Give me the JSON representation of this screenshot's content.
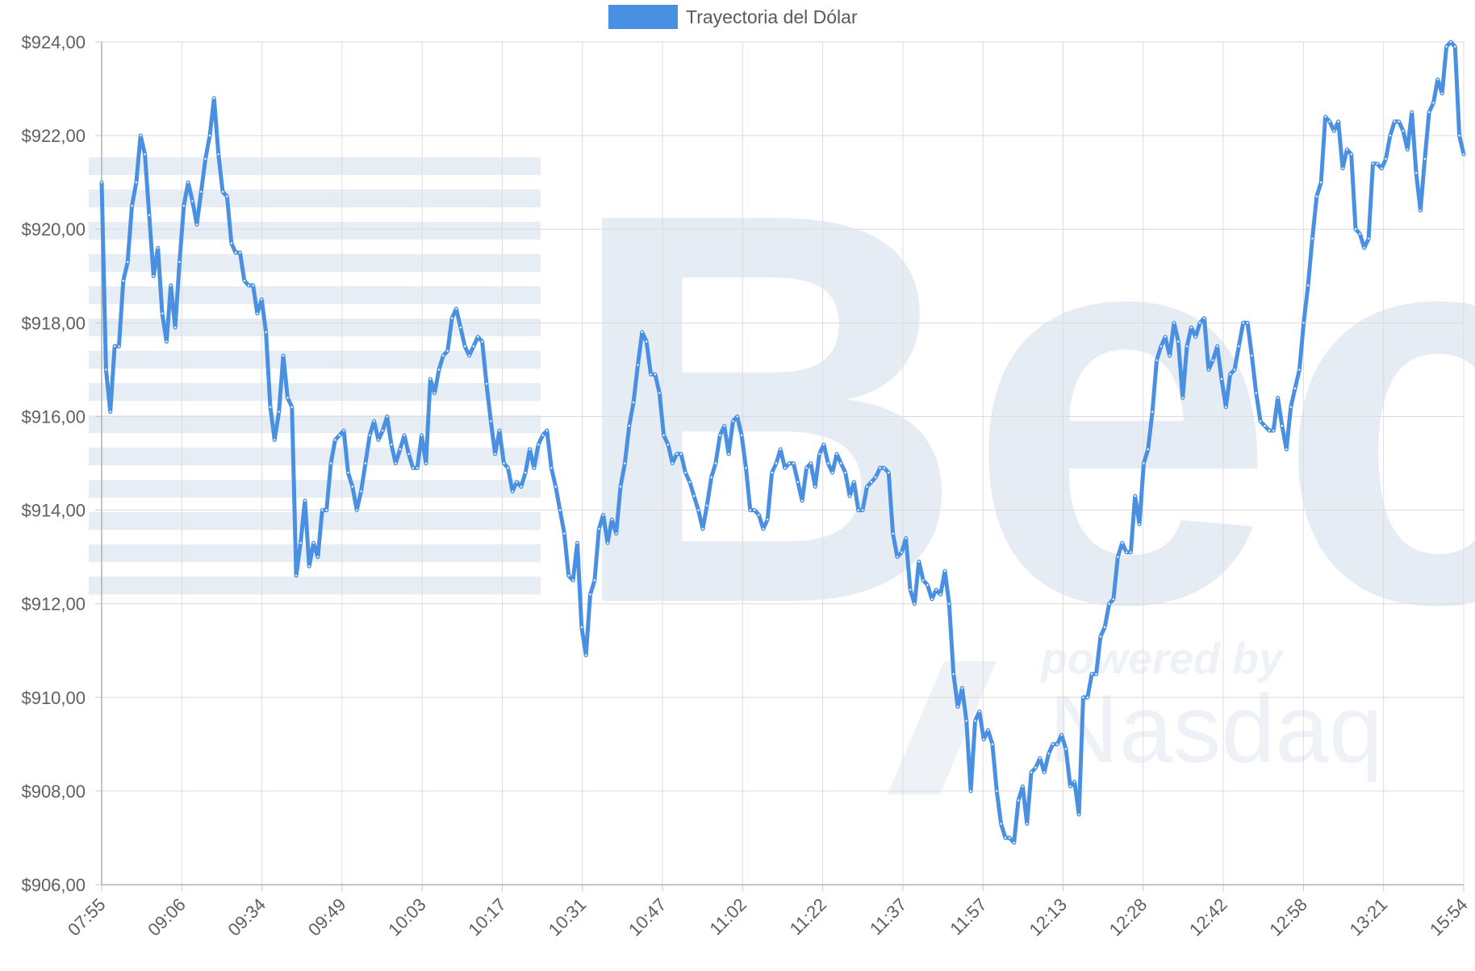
{
  "chart_data": {
    "type": "line",
    "series": [
      {
        "name": "Trayectoria del Dólar",
        "color": "#4a90e2",
        "values": [
          921.0,
          917.0,
          916.1,
          917.5,
          917.5,
          918.9,
          919.3,
          920.5,
          921.0,
          922.0,
          921.6,
          920.3,
          919.0,
          919.6,
          918.2,
          917.6,
          918.8,
          917.9,
          919.3,
          920.5,
          921.0,
          920.6,
          920.1,
          920.8,
          921.5,
          922.0,
          922.8,
          921.6,
          920.8,
          920.7,
          919.7,
          919.5,
          919.5,
          918.9,
          918.8,
          918.8,
          918.2,
          918.5,
          917.8,
          916.2,
          915.5,
          916.1,
          917.3,
          916.4,
          916.2,
          912.6,
          913.3,
          914.2,
          912.8,
          913.3,
          913.0,
          914.0,
          914.0,
          915.0,
          915.5,
          915.6,
          915.7,
          914.8,
          914.5,
          914.0,
          914.4,
          915.0,
          915.6,
          915.9,
          915.5,
          915.7,
          916.0,
          915.4,
          915.0,
          915.3,
          915.6,
          915.2,
          914.9,
          914.9,
          915.6,
          915.0,
          916.8,
          916.5,
          917.0,
          917.3,
          917.4,
          918.1,
          918.3,
          917.9,
          917.5,
          917.3,
          917.5,
          917.7,
          917.6,
          916.7,
          915.9,
          915.2,
          915.7,
          915.0,
          914.9,
          914.4,
          914.6,
          914.5,
          914.8,
          915.3,
          914.9,
          915.4,
          915.6,
          915.7,
          914.9,
          914.5,
          914.0,
          913.5,
          912.6,
          912.5,
          913.3,
          911.5,
          910.9,
          912.2,
          912.5,
          913.6,
          913.9,
          913.3,
          913.8,
          913.5,
          914.5,
          915.0,
          915.8,
          916.3,
          917.1,
          917.8,
          917.6,
          916.9,
          916.9,
          916.5,
          915.6,
          915.4,
          915.0,
          915.2,
          915.2,
          914.8,
          914.6,
          914.3,
          914.0,
          913.6,
          914.1,
          914.7,
          915.0,
          915.6,
          915.8,
          915.2,
          915.9,
          916.0,
          915.6,
          914.9,
          914.0,
          914.0,
          913.9,
          913.6,
          913.8,
          914.8,
          915.0,
          915.3,
          914.9,
          915.0,
          915.0,
          914.6,
          914.2,
          914.9,
          915.0,
          914.5,
          915.2,
          915.4,
          915.0,
          914.8,
          915.2,
          915.0,
          914.8,
          914.3,
          914.6,
          914.0,
          914.0,
          914.5,
          914.6,
          914.7,
          914.9,
          914.9,
          914.8,
          913.5,
          913.0,
          913.1,
          913.4,
          912.3,
          912.0,
          912.9,
          912.5,
          912.4,
          912.1,
          912.3,
          912.2,
          912.7,
          912.0,
          910.5,
          909.8,
          910.2,
          909.5,
          908.0,
          909.5,
          909.7,
          909.1,
          909.3,
          909.0,
          908.0,
          907.3,
          907.0,
          907.0,
          906.9,
          907.8,
          908.1,
          907.3,
          908.4,
          908.5,
          908.7,
          908.4,
          908.8,
          909.0,
          909.0,
          909.2,
          908.9,
          908.1,
          908.2,
          907.5,
          910.0,
          910.0,
          910.5,
          910.5,
          911.3,
          911.5,
          912.0,
          912.1,
          913.0,
          913.3,
          913.1,
          913.1,
          914.3,
          913.7,
          915.0,
          915.3,
          916.1,
          917.2,
          917.5,
          917.7,
          917.3,
          918.0,
          917.6,
          916.4,
          917.5,
          917.9,
          917.7,
          918.0,
          918.1,
          917.0,
          917.2,
          917.5,
          916.8,
          916.2,
          916.9,
          917.0,
          917.5,
          918.0,
          918.0,
          917.3,
          916.5,
          915.9,
          915.8,
          915.7,
          915.7,
          916.4,
          915.8,
          915.3,
          916.2,
          916.6,
          917.0,
          918.0,
          918.8,
          919.8,
          920.7,
          921.0,
          922.4,
          922.3,
          922.1,
          922.3,
          921.3,
          921.7,
          921.6,
          920.0,
          919.9,
          919.6,
          919.8,
          921.4,
          921.4,
          921.3,
          921.5,
          922.0,
          922.3,
          922.3,
          922.1,
          921.7,
          922.5,
          921.2,
          920.4,
          921.5,
          922.5,
          922.7,
          923.2,
          922.9,
          923.9,
          924.0,
          923.9,
          922.0,
          921.6
        ]
      }
    ],
    "x_ticks": [
      "07:55",
      "09:06",
      "09:34",
      "09:49",
      "10:03",
      "10:17",
      "10:31",
      "10:47",
      "11:02",
      "11:22",
      "11:37",
      "11:57",
      "12:13",
      "12:28",
      "12:42",
      "12:58",
      "13:21",
      "15:54"
    ],
    "y_ticks": [
      "$906,00",
      "$908,00",
      "$910,00",
      "$912,00",
      "$914,00",
      "$916,00",
      "$918,00",
      "$920,00",
      "$922,00",
      "$924,00"
    ],
    "ylim": [
      906,
      924
    ],
    "grid": true,
    "legend": "top-center"
  },
  "watermark": {
    "logo_text": "Bec",
    "powered_text": "powered by",
    "brand_text": "Nasdaq"
  }
}
